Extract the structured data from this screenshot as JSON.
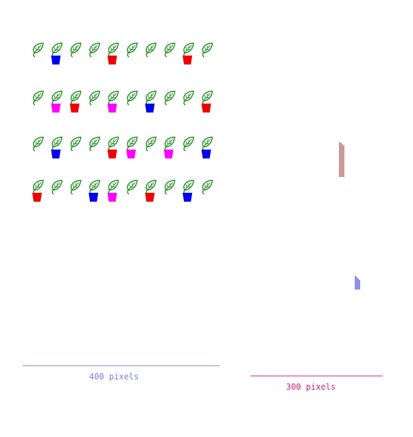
{
  "colors": {
    "leaf": "#1e8c1e",
    "scale_left": "#7b7bd6",
    "scale_right": "#cc2277",
    "marks_top": "#993333",
    "marks_bottom": "#2222cc"
  },
  "pot_colors": {
    "blue": "#0000ee",
    "red": "#ee0000",
    "magenta": "#ff00ff"
  },
  "plant_rows": [
    [
      "none",
      "blue",
      "none",
      "none",
      "red",
      "none",
      "none",
      "none",
      "red",
      "none"
    ],
    [
      "none",
      "magenta",
      "red",
      "none",
      "magenta",
      "none",
      "blue",
      "none",
      "none",
      "red"
    ],
    [
      "none",
      "blue",
      "none",
      "none",
      "red",
      "magenta",
      "none",
      "magenta",
      "none",
      "blue"
    ],
    [
      "red",
      "none",
      "none",
      "blue",
      "magenta",
      "none",
      "red",
      "none",
      "blue",
      "none"
    ]
  ],
  "scales": {
    "left_label": "400 pixels",
    "right_label": "300 pixels"
  },
  "icon": "potted-plant-icon"
}
